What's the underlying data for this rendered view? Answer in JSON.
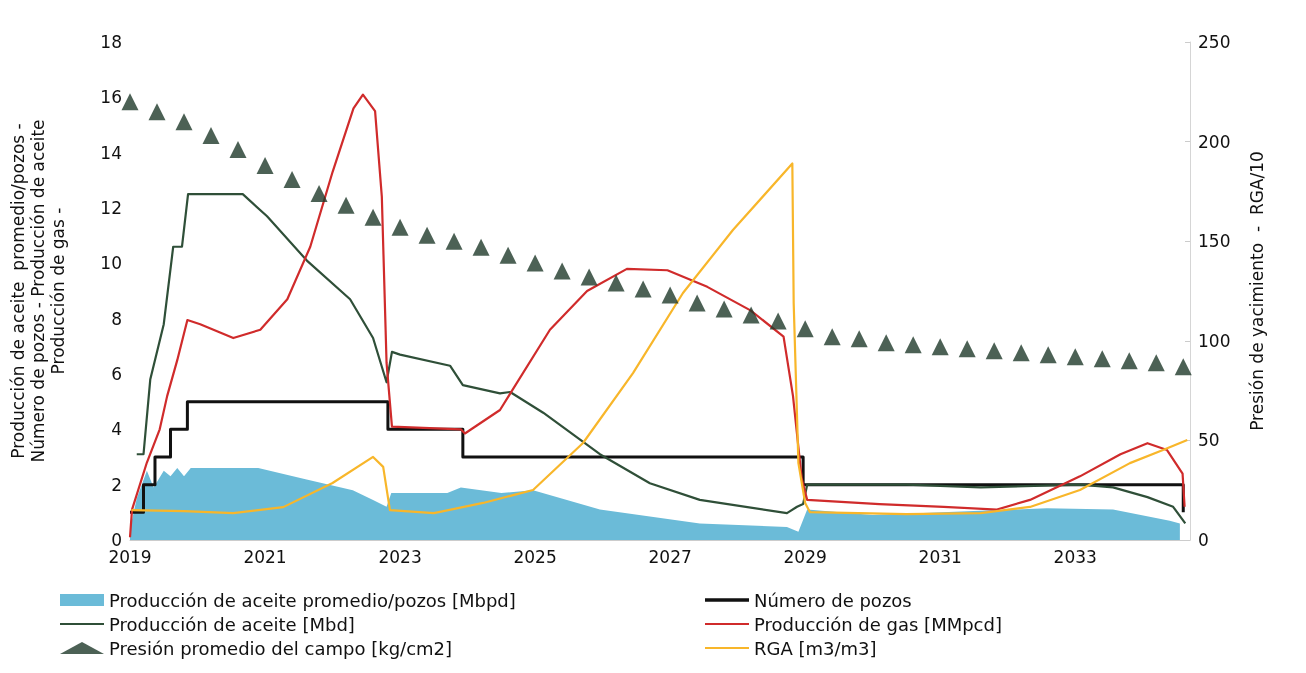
{
  "chart_data": {
    "type": "line",
    "ylabel": "Producción de aceite  promedio/pozos -\nNúmero de pozos - Producción de aceite\nProducción de gas -",
    "y2label": "Presión de yacimiento  -  RGA/10",
    "xlim": [
      2019,
      2034.7
    ],
    "xticks": [
      2019,
      2021,
      2023,
      2025,
      2027,
      2029,
      2031,
      2033
    ],
    "ylim": [
      0,
      18
    ],
    "yticks": [
      0,
      2,
      4,
      6,
      8,
      10,
      12,
      14,
      16,
      18
    ],
    "y2lim": [
      0,
      250
    ],
    "y2ticks": [
      0,
      50,
      100,
      150,
      200,
      250
    ],
    "grid": false,
    "legend": "bottom",
    "series": [
      {
        "name": "Producción de aceite promedio/pozos [Mbpd]",
        "type": "area",
        "color": "#6bbbd8",
        "x": [
          2019,
          2019.1,
          2019.25,
          2019.35,
          2019.5,
          2019.6,
          2019.7,
          2019.8,
          2019.9,
          2020.9,
          2021.6,
          2022.3,
          2022.6,
          2022.8,
          2022.87,
          2023.7,
          2023.9,
          2024.5,
          2024.97,
          2025.96,
          2027.44,
          2028.73,
          2028.9,
          2029.03,
          2030,
          2032.58,
          2033.56,
          2034.4,
          2034.55
        ],
        "values": [
          0.4,
          1.5,
          2.5,
          1.9,
          2.5,
          2.3,
          2.6,
          2.3,
          2.6,
          2.6,
          2.2,
          1.8,
          1.45,
          1.2,
          1.7,
          1.7,
          1.9,
          1.7,
          1.8,
          1.1,
          0.6,
          0.47,
          0.3,
          1.1,
          0.9,
          1.15,
          1.1,
          0.7,
          0.6
        ]
      },
      {
        "name": "Número de pozos",
        "type": "step",
        "color": "#111111",
        "x": [
          2019,
          2019.2,
          2019.37,
          2019.6,
          2019.85,
          2022.82,
          2023.93,
          2028.97,
          2034.6
        ],
        "values": [
          1,
          2,
          3,
          4,
          5,
          4,
          3,
          2,
          1
        ]
      },
      {
        "name": "Producción de aceite [Mbd]",
        "type": "line",
        "color": "#2f4f38",
        "x": [
          2019.1,
          2019.2,
          2019.3,
          2019.5,
          2019.64,
          2019.77,
          2019.86,
          2020.67,
          2021.03,
          2021.62,
          2022.26,
          2022.6,
          2022.8,
          2022.88,
          2023.0,
          2023.74,
          2023.93,
          2024.48,
          2024.63,
          2025.12,
          2025.96,
          2026.7,
          2027.44,
          2028.73,
          2028.88,
          2028.97,
          2029.03,
          2030.5,
          2031.6,
          2033.07,
          2033.56,
          2034.07,
          2034.45,
          2034.63
        ],
        "values": [
          3.1,
          3.1,
          5.8,
          7.8,
          10.6,
          10.6,
          12.5,
          12.5,
          11.7,
          10.1,
          8.7,
          7.3,
          5.7,
          6.8,
          6.7,
          6.3,
          5.6,
          5.3,
          5.35,
          4.6,
          3.1,
          2.05,
          1.45,
          0.97,
          1.2,
          1.3,
          2.0,
          2.0,
          1.9,
          2.0,
          1.9,
          1.55,
          1.2,
          0.6
        ]
      },
      {
        "name": "Producción de gas [MMpcd]",
        "type": "line",
        "color": "#d02b2b",
        "x": [
          2019,
          2019.03,
          2019.25,
          2019.44,
          2019.55,
          2019.7,
          2019.85,
          2020.04,
          2020.53,
          2020.93,
          2021.33,
          2021.67,
          2022.0,
          2022.31,
          2022.45,
          2022.63,
          2022.73,
          2022.8,
          2022.88,
          2023.9,
          2023.96,
          2024.48,
          2025.22,
          2025.77,
          2026.36,
          2026.96,
          2027.55,
          2028.19,
          2028.68,
          2028.82,
          2028.95,
          2029.03,
          2030.1,
          2031.05,
          2031.84,
          2032.33,
          2033.07,
          2033.67,
          2034.07,
          2034.36,
          2034.59,
          2034.62
        ],
        "values": [
          0.1,
          1.1,
          2.8,
          4.0,
          5.2,
          6.5,
          7.95,
          7.8,
          7.3,
          7.6,
          8.7,
          10.6,
          13.3,
          15.6,
          16.1,
          15.5,
          12.4,
          6.4,
          4.1,
          4.0,
          3.85,
          4.7,
          7.6,
          9.0,
          9.8,
          9.75,
          9.15,
          8.3,
          7.35,
          5.2,
          2.2,
          1.45,
          1.3,
          1.2,
          1.1,
          1.45,
          2.3,
          3.1,
          3.5,
          3.25,
          2.4,
          1.2
        ]
      },
      {
        "name": "Presión promedio del campo [kg/cm2]",
        "type": "scatter",
        "marker": "triangle",
        "axis": "y2",
        "color": "#1f3a2a",
        "x": [
          2019.0,
          2019.4,
          2019.8,
          2020.2,
          2020.6,
          2021.0,
          2021.4,
          2021.8,
          2022.2,
          2022.6,
          2023.0,
          2023.4,
          2023.8,
          2024.2,
          2024.6,
          2025.0,
          2025.4,
          2025.8,
          2026.2,
          2026.6,
          2027.0,
          2027.4,
          2027.8,
          2028.2,
          2028.6,
          2029.0,
          2029.4,
          2029.8,
          2030.2,
          2030.6,
          2031.0,
          2031.4,
          2031.8,
          2032.2,
          2032.6,
          2033.0,
          2033.4,
          2033.8,
          2034.2,
          2034.6
        ],
        "values": [
          220,
          215,
          210,
          203,
          196,
          188,
          181,
          174,
          168,
          162,
          157,
          153,
          150,
          147,
          143,
          139,
          135,
          132,
          129,
          126,
          123,
          119,
          116,
          113,
          110,
          106,
          102,
          101,
          99,
          98,
          97,
          96,
          95,
          94,
          93,
          92,
          91,
          90,
          89,
          87
        ]
      },
      {
        "name": "RGA [m3/m3]",
        "type": "line",
        "axis": "y2",
        "color": "#f8b62a",
        "x": [
          2019.02,
          2019.8,
          2020.53,
          2021.27,
          2022.0,
          2022.6,
          2022.75,
          2022.85,
          2023.5,
          2024.23,
          2024.97,
          2025.71,
          2026.45,
          2027.19,
          2027.93,
          2028.81,
          2028.83,
          2028.9,
          2029.0,
          2029.07,
          2030.5,
          2031.6,
          2032.33,
          2033.07,
          2033.81,
          2034.3,
          2034.66
        ],
        "values": [
          15,
          14.5,
          13.5,
          16.5,
          28.6,
          41.7,
          36.7,
          15,
          13.5,
          18.6,
          25.1,
          48.7,
          83.8,
          124,
          155.6,
          189,
          119,
          38.6,
          18.6,
          14,
          13,
          13.5,
          16.6,
          25.1,
          38.6,
          45.2,
          50.2
        ]
      }
    ]
  }
}
